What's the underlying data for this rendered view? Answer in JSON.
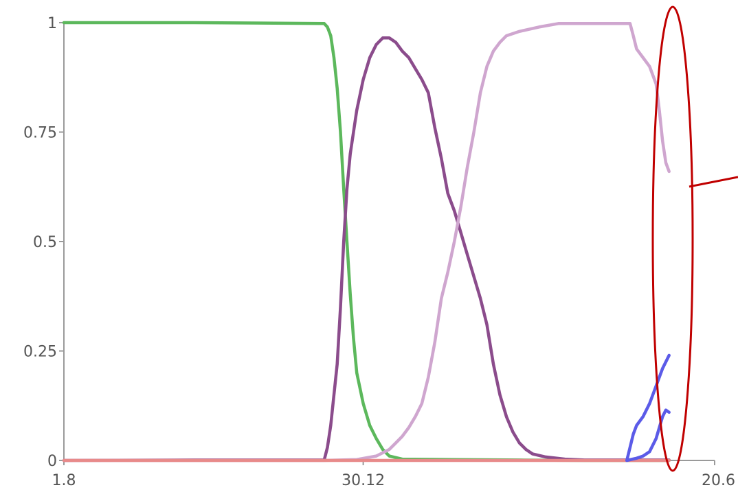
{
  "chart_data": {
    "type": "line",
    "title": "",
    "xlabel": "",
    "ylabel": "",
    "x_ticks": [
      {
        "t": 0,
        "label": "1.8"
      },
      {
        "t": 0.46,
        "label": "30.12"
      },
      {
        "t": 1,
        "label": "20.6"
      }
    ],
    "y_ticks": [
      {
        "v": 0,
        "label": "0"
      },
      {
        "v": 0.25,
        "label": "0.25"
      },
      {
        "v": 0.5,
        "label": "0.5"
      },
      {
        "v": 0.75,
        "label": "0.75"
      },
      {
        "v": 1,
        "label": "1"
      }
    ],
    "xlim": [
      0,
      1
    ],
    "ylim": [
      0,
      1
    ],
    "grid": false,
    "series": [
      {
        "color": "#5cb85c",
        "points": [
          [
            0,
            1
          ],
          [
            0.2,
            1
          ],
          [
            0.4,
            0.998
          ],
          [
            0.405,
            0.99
          ],
          [
            0.41,
            0.97
          ],
          [
            0.415,
            0.92
          ],
          [
            0.42,
            0.85
          ],
          [
            0.425,
            0.75
          ],
          [
            0.43,
            0.62
          ],
          [
            0.435,
            0.5
          ],
          [
            0.44,
            0.38
          ],
          [
            0.445,
            0.28
          ],
          [
            0.45,
            0.2
          ],
          [
            0.46,
            0.13
          ],
          [
            0.47,
            0.08
          ],
          [
            0.48,
            0.05
          ],
          [
            0.49,
            0.025
          ],
          [
            0.5,
            0.01
          ],
          [
            0.52,
            0.003
          ],
          [
            0.6,
            0.002
          ],
          [
            0.7,
            0.001
          ],
          [
            0.8,
            0
          ],
          [
            0.93,
            0
          ]
        ]
      },
      {
        "color": "#8b4c8c",
        "points": [
          [
            0,
            0
          ],
          [
            0.2,
            0.001
          ],
          [
            0.4,
            0.001
          ],
          [
            0.405,
            0.03
          ],
          [
            0.41,
            0.08
          ],
          [
            0.415,
            0.15
          ],
          [
            0.42,
            0.22
          ],
          [
            0.425,
            0.35
          ],
          [
            0.43,
            0.5
          ],
          [
            0.435,
            0.62
          ],
          [
            0.44,
            0.7
          ],
          [
            0.45,
            0.8
          ],
          [
            0.46,
            0.87
          ],
          [
            0.47,
            0.92
          ],
          [
            0.48,
            0.95
          ],
          [
            0.49,
            0.965
          ],
          [
            0.5,
            0.965
          ],
          [
            0.51,
            0.955
          ],
          [
            0.52,
            0.935
          ],
          [
            0.53,
            0.92
          ],
          [
            0.54,
            0.895
          ],
          [
            0.55,
            0.87
          ],
          [
            0.56,
            0.84
          ],
          [
            0.57,
            0.76
          ],
          [
            0.58,
            0.69
          ],
          [
            0.59,
            0.61
          ],
          [
            0.6,
            0.57
          ],
          [
            0.61,
            0.52
          ],
          [
            0.62,
            0.47
          ],
          [
            0.63,
            0.42
          ],
          [
            0.64,
            0.37
          ],
          [
            0.65,
            0.31
          ],
          [
            0.66,
            0.22
          ],
          [
            0.67,
            0.15
          ],
          [
            0.68,
            0.1
          ],
          [
            0.69,
            0.065
          ],
          [
            0.7,
            0.04
          ],
          [
            0.71,
            0.025
          ],
          [
            0.72,
            0.015
          ],
          [
            0.74,
            0.008
          ],
          [
            0.77,
            0.003
          ],
          [
            0.8,
            0.001
          ],
          [
            0.93,
            0.001
          ]
        ]
      },
      {
        "color": "#cfa6cf",
        "points": [
          [
            0,
            0
          ],
          [
            0.4,
            0
          ],
          [
            0.45,
            0.002
          ],
          [
            0.48,
            0.01
          ],
          [
            0.5,
            0.025
          ],
          [
            0.51,
            0.04
          ],
          [
            0.52,
            0.055
          ],
          [
            0.53,
            0.075
          ],
          [
            0.54,
            0.1
          ],
          [
            0.55,
            0.13
          ],
          [
            0.56,
            0.19
          ],
          [
            0.57,
            0.27
          ],
          [
            0.58,
            0.37
          ],
          [
            0.59,
            0.43
          ],
          [
            0.6,
            0.5
          ],
          [
            0.61,
            0.58
          ],
          [
            0.62,
            0.67
          ],
          [
            0.63,
            0.75
          ],
          [
            0.64,
            0.84
          ],
          [
            0.65,
            0.9
          ],
          [
            0.66,
            0.935
          ],
          [
            0.67,
            0.955
          ],
          [
            0.68,
            0.97
          ],
          [
            0.7,
            0.98
          ],
          [
            0.73,
            0.99
          ],
          [
            0.76,
            0.998
          ],
          [
            0.87,
            0.998
          ],
          [
            0.875,
            0.97
          ],
          [
            0.88,
            0.94
          ],
          [
            0.89,
            0.92
          ],
          [
            0.9,
            0.9
          ],
          [
            0.91,
            0.86
          ],
          [
            0.915,
            0.8
          ],
          [
            0.92,
            0.73
          ],
          [
            0.925,
            0.68
          ],
          [
            0.93,
            0.66
          ]
        ]
      },
      {
        "color": "#e88a8a",
        "points": [
          [
            0,
            0
          ],
          [
            0.93,
            0
          ]
        ]
      },
      {
        "color": "#5b5be8",
        "points": [
          [
            0.865,
            0
          ],
          [
            0.87,
            0.03
          ],
          [
            0.875,
            0.06
          ],
          [
            0.88,
            0.08
          ],
          [
            0.89,
            0.1
          ],
          [
            0.9,
            0.13
          ],
          [
            0.91,
            0.17
          ],
          [
            0.92,
            0.21
          ],
          [
            0.93,
            0.24
          ]
        ]
      },
      {
        "color": "#5b5be8",
        "points": [
          [
            0.865,
            0
          ],
          [
            0.88,
            0.005
          ],
          [
            0.89,
            0.01
          ],
          [
            0.9,
            0.02
          ],
          [
            0.91,
            0.05
          ],
          [
            0.92,
            0.1
          ],
          [
            0.925,
            0.115
          ],
          [
            0.93,
            0.11
          ]
        ]
      }
    ]
  }
}
